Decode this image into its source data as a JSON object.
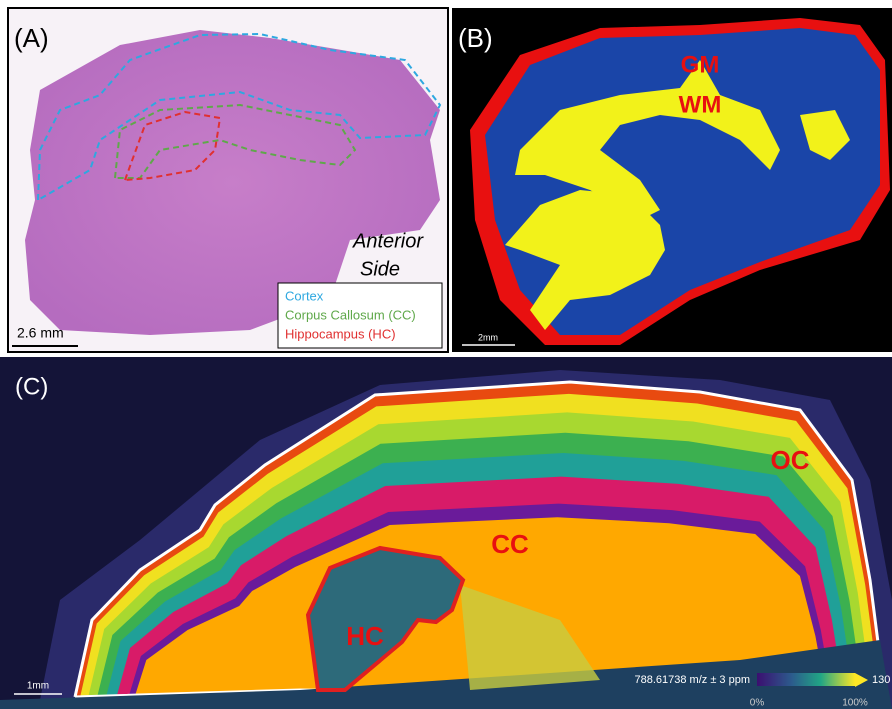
{
  "panels": {
    "a": {
      "label": "(A)",
      "annotation": [
        "Anterior",
        "Side"
      ],
      "scale_bar": "2.6 mm",
      "legend": [
        "Cortex",
        "Corpus Callosum (CC)",
        "Hippocampus (HC)"
      ]
    },
    "b": {
      "label": "(B)",
      "regions": [
        "GM",
        "WM"
      ],
      "scale_bar": "2mm"
    },
    "c": {
      "label": "(C)",
      "regions": [
        "OC",
        "CC",
        "HC"
      ],
      "scale_bar": "1mm",
      "colorbar": {
        "title": "788.61738 m/z ± 3 ppm",
        "min": "0%",
        "mid": "100%",
        "max": "130"
      }
    }
  }
}
